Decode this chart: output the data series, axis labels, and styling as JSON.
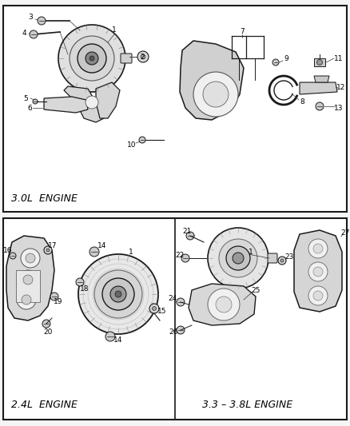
{
  "bg_color": "#f5f5f5",
  "line_color": "#1a1a1a",
  "fill_light": "#e8e8e8",
  "fill_mid": "#d0d0d0",
  "fill_white": "#ffffff",
  "top_label": "3.0L  ENGINE",
  "bot_left_label": "2.4L  ENGINE",
  "bot_right_label": "3.3 – 3.8L ENGINE",
  "font_size_label": 9,
  "font_size_num": 6.5
}
